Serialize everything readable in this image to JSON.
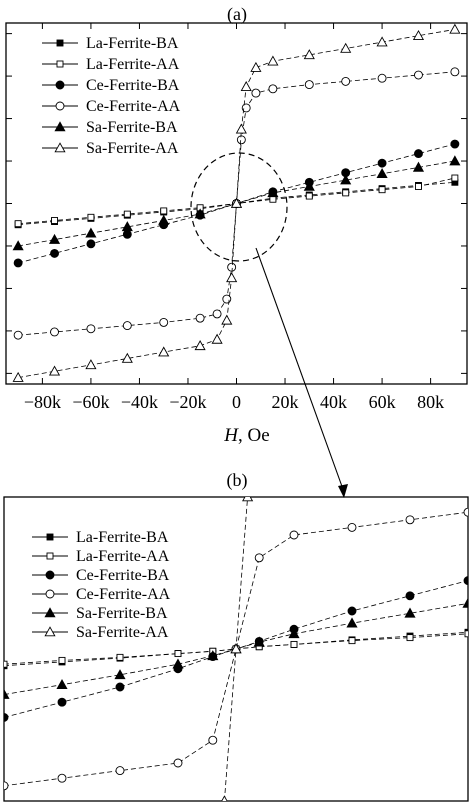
{
  "chart_data": [
    {
      "panel_label": "(a)",
      "type": "scatter",
      "title": "",
      "xlabel_var": "H",
      "xlabel_unit": ", Oe",
      "ylabel": "",
      "xlim": [
        -95000,
        95000
      ],
      "ylim": [
        -85,
        85
      ],
      "x_ticks": [
        -80000,
        -60000,
        -40000,
        -20000,
        0,
        20000,
        40000,
        60000,
        80000
      ],
      "x_tick_labels": [
        "−80k",
        "−60k",
        "−40k",
        "−20k",
        "0",
        "20k",
        "40k",
        "60k",
        "80k"
      ],
      "y_ticks": [
        -80,
        -60,
        -40,
        -20,
        0,
        20,
        40,
        60,
        80
      ],
      "legend_position": "top-left",
      "zoom_circle_label": "",
      "series": [
        {
          "name": "La-Ferrite-BA",
          "marker": "square",
          "filled": true,
          "x": [
            -90000,
            -75000,
            -60000,
            -45000,
            -30000,
            -15000,
            0,
            15000,
            30000,
            45000,
            60000,
            75000,
            90000
          ],
          "y": [
            -10,
            -8.5,
            -7,
            -5.5,
            -4,
            -2.5,
            0,
            2.5,
            4,
            5.5,
            7,
            8.5,
            10
          ]
        },
        {
          "name": "La-Ferrite-AA",
          "marker": "square",
          "filled": false,
          "x": [
            -90000,
            -75000,
            -60000,
            -45000,
            -30000,
            -15000,
            0,
            15000,
            30000,
            45000,
            60000,
            75000,
            90000
          ],
          "y": [
            -9.5,
            -8,
            -6.5,
            -5,
            -3.5,
            -2,
            0,
            2,
            3.5,
            5,
            6.5,
            8,
            12
          ]
        },
        {
          "name": "Ce-Ferrite-BA",
          "marker": "circle",
          "filled": true,
          "x": [
            -90000,
            -75000,
            -60000,
            -45000,
            -30000,
            -15000,
            0,
            15000,
            30000,
            45000,
            60000,
            75000,
            90000
          ],
          "y": [
            -28,
            -23.5,
            -19,
            -14.5,
            -10,
            -5.5,
            0,
            5.5,
            10,
            14.5,
            19,
            23.5,
            28
          ]
        },
        {
          "name": "Ce-Ferrite-AA",
          "marker": "circle",
          "filled": false,
          "x": [
            -90000,
            -75000,
            -60000,
            -45000,
            -30000,
            -15000,
            -8000,
            -4000,
            -2000,
            0,
            2000,
            4000,
            8000,
            15000,
            30000,
            45000,
            60000,
            75000,
            90000
          ],
          "y": [
            -62,
            -60.5,
            -59,
            -57.5,
            -56,
            -54,
            -52,
            -45,
            -30,
            0,
            30,
            45,
            52,
            54,
            56,
            57.5,
            59,
            60.5,
            62
          ]
        },
        {
          "name": "Sa-Ferrite-BA",
          "marker": "triangle",
          "filled": true,
          "x": [
            -90000,
            -75000,
            -60000,
            -45000,
            -30000,
            -15000,
            0,
            15000,
            30000,
            45000,
            60000,
            75000,
            90000
          ],
          "y": [
            -20,
            -17,
            -14,
            -11,
            -8,
            -5,
            0,
            5,
            8,
            11,
            14,
            17,
            20
          ]
        },
        {
          "name": "Sa-Ferrite-AA",
          "marker": "triangle",
          "filled": false,
          "x": [
            -90000,
            -75000,
            -60000,
            -45000,
            -30000,
            -15000,
            -8000,
            -4000,
            -2000,
            0,
            2000,
            4000,
            8000,
            15000,
            30000,
            45000,
            60000,
            75000,
            90000
          ],
          "y": [
            -82,
            -79,
            -76,
            -73,
            -70,
            -67,
            -64,
            -55,
            -35,
            0,
            35,
            55,
            64,
            67,
            70,
            73,
            76,
            79,
            82
          ]
        }
      ]
    },
    {
      "panel_label": "(b)",
      "type": "scatter",
      "title": "",
      "xlabel": "",
      "ylabel": "",
      "xlim": [
        -20000,
        20000
      ],
      "ylim": [
        -20,
        20
      ],
      "legend_position": "top-left",
      "series": [
        {
          "name": "La-Ferrite-BA",
          "marker": "square",
          "filled": true,
          "x": [
            -20000,
            -15000,
            -10000,
            -5000,
            -2000,
            0,
            2000,
            5000,
            10000,
            15000,
            20000
          ],
          "y": [
            -2.2,
            -1.7,
            -1.2,
            -0.6,
            -0.3,
            0,
            0.3,
            0.6,
            1.2,
            1.7,
            2.2
          ]
        },
        {
          "name": "La-Ferrite-AA",
          "marker": "square",
          "filled": false,
          "x": [
            -20000,
            -15000,
            -10000,
            -5000,
            -2000,
            0,
            2000,
            5000,
            10000,
            15000,
            20000
          ],
          "y": [
            -2,
            -1.5,
            -1.1,
            -0.6,
            -0.3,
            0,
            0.3,
            0.6,
            1.1,
            1.5,
            2
          ]
        },
        {
          "name": "Ce-Ferrite-BA",
          "marker": "circle",
          "filled": true,
          "x": [
            -20000,
            -15000,
            -10000,
            -5000,
            -2000,
            0,
            2000,
            5000,
            10000,
            15000,
            20000
          ],
          "y": [
            -9,
            -7,
            -5,
            -2.6,
            -1,
            0,
            1,
            2.6,
            5,
            7,
            9
          ]
        },
        {
          "name": "Ce-Ferrite-AA",
          "marker": "circle",
          "filled": false,
          "x": [
            -20000,
            -15000,
            -10000,
            -5000,
            -2000,
            0,
            2000,
            5000,
            10000,
            15000,
            20000
          ],
          "y": [
            -18,
            -17,
            -16,
            -15,
            -12,
            0,
            12,
            15,
            16,
            17,
            18
          ]
        },
        {
          "name": "Sa-Ferrite-BA",
          "marker": "triangle",
          "filled": true,
          "x": [
            -20000,
            -15000,
            -10000,
            -5000,
            -2000,
            0,
            2000,
            5000,
            10000,
            15000,
            20000
          ],
          "y": [
            -6,
            -4.7,
            -3.4,
            -2,
            -0.9,
            0,
            0.9,
            2,
            3.4,
            4.7,
            6
          ]
        },
        {
          "name": "Sa-Ferrite-AA",
          "marker": "triangle",
          "filled": false,
          "x": [
            -1000,
            0,
            1000
          ],
          "y": [
            -20,
            0,
            20
          ]
        }
      ]
    }
  ]
}
